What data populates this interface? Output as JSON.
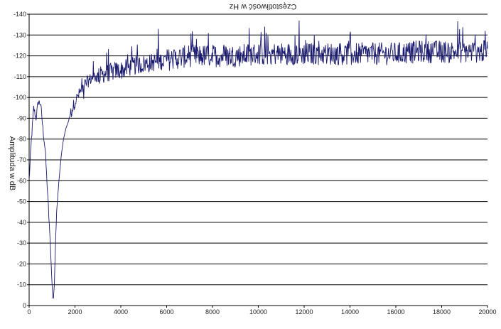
{
  "chart_data": {
    "type": "line",
    "title": "Częstotliwość w Hz",
    "xlabel": "",
    "ylabel": "Amplituda w dB",
    "xlim": [
      0,
      20000
    ],
    "ylim": [
      0,
      140
    ],
    "x_ticks": [
      0,
      2000,
      4000,
      6000,
      8000,
      10000,
      12000,
      14000,
      16000,
      18000,
      20000
    ],
    "y_ticks": [
      0,
      10,
      20,
      30,
      40,
      50,
      60,
      70,
      80,
      90,
      100,
      110,
      120,
      130,
      140
    ],
    "x_tick_labels": [
      "0",
      "2000",
      "4000",
      "6000",
      "8000",
      "10000",
      "12000",
      "14000",
      "16000",
      "18000",
      "20000"
    ],
    "y_tick_labels": [
      "0",
      "-10",
      "-20",
      "-30",
      "-40",
      "-50",
      "-60",
      "-70",
      "-80",
      "-90",
      "-100",
      "-110",
      "-120",
      "-130",
      "-140"
    ],
    "grid": true,
    "line_color": "#1a1a6e",
    "series": [
      {
        "name": "",
        "x": [
          0,
          100,
          200,
          300,
          400,
          500,
          600,
          700,
          800,
          900,
          1000,
          1050,
          1100,
          1150,
          1200,
          1300,
          1400,
          1500,
          1600,
          1700,
          1800,
          1900,
          2000,
          2200,
          2400,
          2600,
          2800,
          3000,
          3200,
          3400,
          3600,
          3800,
          4000,
          4500,
          5000,
          5500,
          6000,
          6500,
          7000,
          8000,
          9000,
          10000,
          11000,
          12000,
          13000,
          14000,
          15000,
          16000,
          17000,
          18000,
          19000,
          20000
        ],
        "values": [
          60,
          80,
          95,
          90,
          98,
          97,
          85,
          75,
          55,
          35,
          10,
          2,
          10,
          30,
          45,
          60,
          72,
          80,
          85,
          88,
          92,
          95,
          98,
          102,
          106,
          108,
          110,
          110,
          111,
          112,
          112,
          113,
          113,
          115,
          116,
          117,
          118,
          119,
          120,
          120,
          120,
          121,
          121,
          121,
          121,
          121,
          121,
          121,
          122,
          122,
          122,
          122
        ]
      }
    ]
  }
}
